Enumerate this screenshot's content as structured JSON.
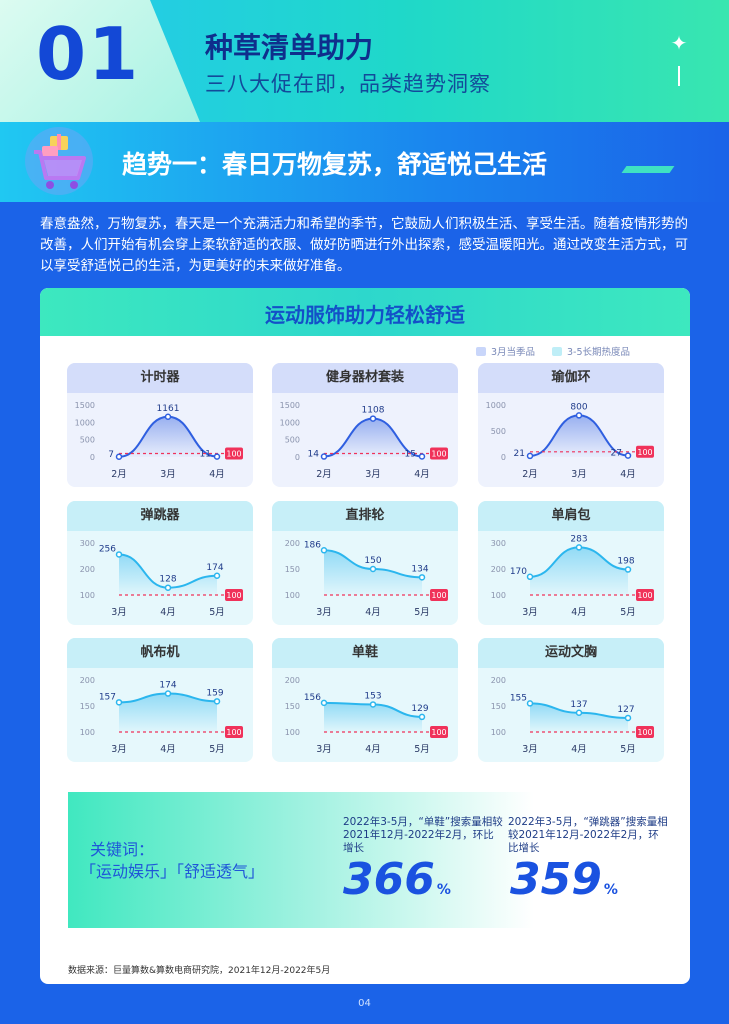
{
  "header": {
    "section_number": "01",
    "title": "种草清单助力",
    "subtitle": "三八大促在即，品类趋势洞察"
  },
  "trend": {
    "title": "趋势一：春日万物复苏，舒适悦己生活",
    "intro": "春意盎然，万物复苏，春天是一个充满活力和希望的季节，它鼓励人们积极生活、享受生活。随着疫情形势的改善，人们开始有机会穿上柔软舒适的衣服、做好防晒进行外出探索，感受温暖阳光。通过改变生活方式，可以享受舒适悦己的生活，为更美好的未来做好准备。"
  },
  "panel": {
    "title": "运动服饰助力轻松舒适",
    "legend": [
      {
        "label": "3月当季品",
        "color": "#c9d6fa"
      },
      {
        "label": "3-5长期热度品",
        "color": "#bfeef7"
      }
    ]
  },
  "colors": {
    "baseline": "#f0325a",
    "blue_line": "#2f5fe0",
    "teal_line": "#2bb6ee"
  },
  "chart_data": [
    {
      "type": "line",
      "title": "计时器",
      "group": "3月当季品",
      "x": [
        "2月",
        "3月",
        "4月"
      ],
      "values": [
        7,
        1161,
        11
      ],
      "yticks": [
        0,
        500,
        1000,
        1500
      ],
      "ylim": [
        0,
        1500
      ],
      "baseline": 100
    },
    {
      "type": "line",
      "title": "健身器材套装",
      "group": "3月当季品",
      "x": [
        "2月",
        "3月",
        "4月"
      ],
      "values": [
        14,
        1108,
        15
      ],
      "yticks": [
        0,
        500,
        1000,
        1500
      ],
      "ylim": [
        0,
        1500
      ],
      "baseline": 100
    },
    {
      "type": "line",
      "title": "瑜伽环",
      "group": "3月当季品",
      "x": [
        "2月",
        "3月",
        "4月"
      ],
      "values": [
        21,
        800,
        27
      ],
      "yticks": [
        0,
        500,
        1000
      ],
      "ylim": [
        0,
        1000
      ],
      "baseline": 100
    },
    {
      "type": "line",
      "title": "弹跳器",
      "group": "3-5长期热度品",
      "x": [
        "3月",
        "4月",
        "5月"
      ],
      "values": [
        256,
        128,
        174
      ],
      "yticks": [
        100,
        200,
        300
      ],
      "ylim": [
        100,
        300
      ],
      "baseline": 100
    },
    {
      "type": "line",
      "title": "直排轮",
      "group": "3-5长期热度品",
      "x": [
        "3月",
        "4月",
        "5月"
      ],
      "values": [
        186,
        150,
        134
      ],
      "yticks": [
        100,
        150,
        200
      ],
      "ylim": [
        100,
        200
      ],
      "baseline": 100
    },
    {
      "type": "line",
      "title": "单肩包",
      "group": "3-5长期热度品",
      "x": [
        "3月",
        "4月",
        "5月"
      ],
      "values": [
        170,
        283,
        198
      ],
      "yticks": [
        100,
        200,
        300
      ],
      "ylim": [
        100,
        300
      ],
      "baseline": 100
    },
    {
      "type": "line",
      "title": "帆布机",
      "group": "3-5长期热度品",
      "x": [
        "3月",
        "4月",
        "5月"
      ],
      "values": [
        157,
        174,
        159
      ],
      "yticks": [
        100,
        150,
        200
      ],
      "ylim": [
        100,
        200
      ],
      "baseline": 100
    },
    {
      "type": "line",
      "title": "单鞋",
      "group": "3-5长期热度品",
      "x": [
        "3月",
        "4月",
        "5月"
      ],
      "values": [
        156,
        153,
        129
      ],
      "yticks": [
        100,
        150,
        200
      ],
      "ylim": [
        100,
        200
      ],
      "baseline": 100
    },
    {
      "type": "line",
      "title": "运动文胸",
      "group": "3-5长期热度品",
      "x": [
        "3月",
        "4月",
        "5月"
      ],
      "values": [
        155,
        137,
        127
      ],
      "yticks": [
        100,
        150,
        200
      ],
      "ylim": [
        100,
        200
      ],
      "baseline": 100
    }
  ],
  "keywords": {
    "label": "关键词：",
    "tags": "「运动娱乐」「舒适透气」"
  },
  "stats": [
    {
      "desc": "2022年3-5月，“单鞋”搜索量相较2021年12月-2022年2月，环比增长",
      "value": "366",
      "unit": "%"
    },
    {
      "desc": "2022年3-5月，“弹跳器”搜索量相较2021年12月-2022年2月，环比增长",
      "value": "359",
      "unit": "%"
    }
  ],
  "footer": {
    "source": "数据来源：巨量算数&算数电商研究院，2021年12月-2022年5月",
    "page": "04"
  }
}
